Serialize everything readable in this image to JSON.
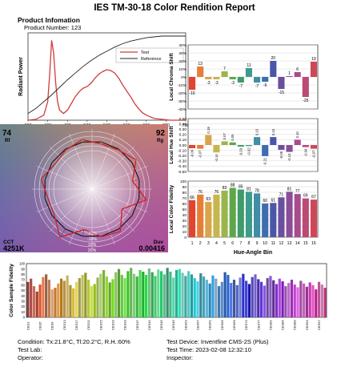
{
  "report_title": "IES TM-30-18 Color Rendition Report",
  "info_heading": "Product Infomation",
  "product_number": "Product Number: 123",
  "footer": {
    "condition": "Condition: Tx:21.8°C, Tl:20.2°C, R.H.:60%",
    "test_lab": "Test Lab:",
    "operator": "Operator:",
    "device": "Test Device: Inventfine CMS-2S (Plus)",
    "test_time": "Test Time: 2023-02-08 12:32:10",
    "inspector": "Inspector:"
  },
  "colors": {
    "test_line": "#d23b3b",
    "reference_line": "#222222",
    "grid": "#cccccc"
  },
  "chart_data": [
    {
      "type": "line",
      "ylabel": "Radiant Power",
      "legend": [
        "Test",
        "Reference"
      ],
      "legend_position": "top-right",
      "x_ticks": [
        "380",
        "430",
        "480",
        "530",
        "580",
        "630",
        "680",
        "730",
        "780"
      ],
      "xlim": [
        380,
        780
      ],
      "ylim": [
        0,
        1
      ],
      "series": [
        {
          "name": "Test",
          "x": [
            380,
            400,
            420,
            430,
            435,
            440,
            445,
            450,
            455,
            460,
            470,
            480,
            490,
            500,
            510,
            520,
            530,
            540,
            550,
            560,
            570,
            580,
            590,
            600,
            610,
            620,
            630,
            640,
            650,
            660,
            670,
            680,
            690,
            700,
            720,
            740,
            760,
            780
          ],
          "y": [
            0.0,
            0.01,
            0.06,
            0.22,
            0.55,
            0.95,
            0.8,
            0.45,
            0.22,
            0.12,
            0.08,
            0.12,
            0.2,
            0.28,
            0.34,
            0.38,
            0.4,
            0.44,
            0.5,
            0.55,
            0.58,
            0.6,
            0.59,
            0.56,
            0.5,
            0.42,
            0.35,
            0.28,
            0.2,
            0.14,
            0.09,
            0.06,
            0.04,
            0.02,
            0.01,
            0.0,
            0.0,
            0.0
          ]
        },
        {
          "name": "Reference",
          "x": [
            380,
            400,
            420,
            440,
            460,
            480,
            500,
            520,
            540,
            560,
            580,
            600,
            620,
            640,
            660,
            680,
            700,
            720,
            740,
            760,
            780
          ],
          "y": [
            0.08,
            0.14,
            0.22,
            0.3,
            0.39,
            0.48,
            0.56,
            0.64,
            0.71,
            0.77,
            0.82,
            0.87,
            0.91,
            0.94,
            0.96,
            0.98,
            0.99,
            1.0,
            1.0,
            1.0,
            1.0
          ]
        }
      ]
    },
    {
      "type": "bar",
      "ylabel": "Local Chroma Shift",
      "y_ticks": [
        "40%",
        "30%",
        "20%",
        "10%",
        "0%",
        "-10%",
        "-20%",
        "-30%",
        "-40%"
      ],
      "ylim": [
        -40,
        40
      ],
      "categories": [
        "1",
        "2",
        "3",
        "4",
        "5",
        "6",
        "7",
        "8",
        "9",
        "10",
        "11",
        "12",
        "13",
        "14",
        "15",
        "16"
      ],
      "values": [
        -16,
        13,
        -3,
        -3,
        7,
        -3,
        -7,
        11,
        -7,
        -6,
        20,
        -15,
        1,
        6,
        -25,
        19
      ],
      "data_labels": [
        "-16",
        "13",
        "-3",
        "-3",
        "7",
        "-3",
        "-7",
        "11",
        "-7",
        "-6",
        "20",
        "-15",
        "1",
        "6",
        "-25",
        "19"
      ]
    },
    {
      "type": "bar",
      "ylabel": "Local Hue Shift",
      "y_ticks": [
        "0.50",
        "0.40",
        "0.30",
        "0.20",
        "0.10",
        "0.00",
        "-0.10",
        "-0.20",
        "-0.30",
        "-0.40",
        "-0.50"
      ],
      "ylim": [
        -0.5,
        0.5
      ],
      "categories": [
        "1",
        "2",
        "3",
        "4",
        "5",
        "6",
        "7",
        "8",
        "9",
        "10",
        "11",
        "12",
        "13",
        "14",
        "15",
        "16"
      ],
      "values": [
        -0.06,
        -0.07,
        0.19,
        -0.14,
        0.07,
        0.05,
        -0.03,
        -0.02,
        0.15,
        -0.21,
        0.15,
        -0.09,
        -0.13,
        0.1,
        -0.04,
        -0.07
      ],
      "data_labels": [
        "-0.06",
        "-0.07",
        "0.19",
        "-0.14",
        "0.07",
        "0.05",
        "-0.03",
        "-0.02",
        "0.15",
        "-0.21",
        "0.15",
        "-0.09",
        "-0.13",
        "0.10",
        "-0.04",
        "-0.07"
      ]
    },
    {
      "type": "bar",
      "ylabel": "Local Color Fidelity",
      "xlabel": "Hue-Angle Bin",
      "y_ticks": [
        "100",
        "90",
        "80",
        "70",
        "60",
        "50",
        "40",
        "30",
        "20",
        "10",
        "0"
      ],
      "ylim": [
        0,
        100
      ],
      "categories": [
        "1",
        "2",
        "3",
        "4",
        "5",
        "6",
        "7",
        "8",
        "9",
        "10",
        "11",
        "12",
        "13",
        "14",
        "15",
        "16"
      ],
      "values": [
        66,
        76,
        63,
        76,
        83,
        88,
        85,
        81,
        78,
        60,
        61,
        71,
        81,
        77,
        69,
        67
      ],
      "data_labels": [
        "66",
        "76",
        "63",
        "76",
        "83",
        "88",
        "85",
        "81",
        "78",
        "60",
        "61",
        "71",
        "81",
        "77",
        "69",
        "67"
      ]
    },
    {
      "type": "bar",
      "ylabel": "Color Sample Fidelity",
      "y_ticks": [
        "100",
        "90",
        "80",
        "70",
        "60",
        "50",
        "40",
        "30",
        "20",
        "10",
        "0"
      ],
      "ylim": [
        0,
        100
      ],
      "tick_labels": [
        "CES1",
        "CES5",
        "CES9",
        "CES13",
        "CES17",
        "CES21",
        "CES25",
        "CES29",
        "CES33",
        "CES37",
        "CES41",
        "CES45",
        "CES49",
        "CES53",
        "CES57",
        "CES61",
        "CES65",
        "CES69",
        "CES73",
        "CES77",
        "CES81",
        "CES85",
        "CES89",
        "CES93",
        "CES97"
      ],
      "values": [
        66,
        72,
        58,
        48,
        61,
        75,
        80,
        70,
        52,
        55,
        63,
        72,
        68,
        78,
        60,
        54,
        66,
        73,
        79,
        83,
        70,
        58,
        62,
        74,
        81,
        88,
        76,
        65,
        71,
        84,
        90,
        79,
        73,
        86,
        92,
        81,
        76,
        88,
        85,
        79,
        91,
        84,
        77,
        89,
        86,
        80,
        92,
        85,
        74,
        88,
        90,
        83,
        77,
        86,
        80,
        73,
        67,
        82,
        76,
        70,
        63,
        78,
        72,
        58,
        66,
        84,
        79,
        64,
        70,
        60,
        74,
        81,
        68,
        62,
        75,
        80,
        71,
        66,
        59,
        73,
        77,
        69,
        62,
        72,
        67,
        58,
        64,
        70,
        61,
        56,
        68,
        63,
        57,
        65,
        60,
        52,
        66,
        61,
        55
      ]
    },
    {
      "type": "scatter",
      "kind": "color-vector-graphic",
      "corner_labels": {
        "rf_value": "74",
        "rf_label": "Rf",
        "rg_value": "92",
        "rg_label": "Rg",
        "cct_label": "CCT",
        "cct_value": "4251K",
        "duv_label": "Duv",
        "duv_value": "0.00416"
      },
      "ring_labels": [
        "-20%",
        "-10%",
        "10%",
        "20%"
      ],
      "reference_radius": 1,
      "test_radii": [
        0.86,
        1.1,
        0.98,
        0.96,
        1.05,
        0.98,
        0.93,
        1.08,
        0.94,
        0.95,
        1.2,
        0.86,
        1.01,
        1.06,
        0.75,
        1.15
      ]
    }
  ]
}
